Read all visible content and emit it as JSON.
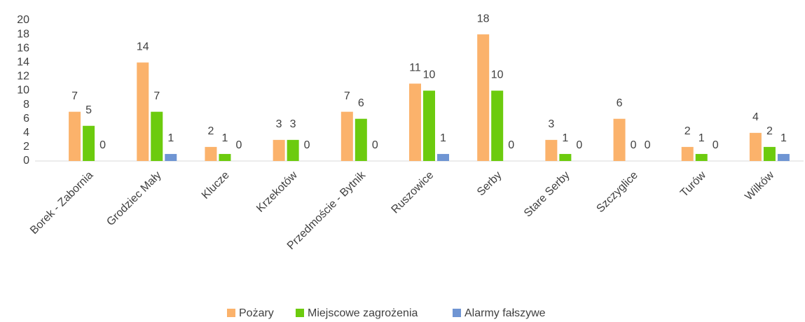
{
  "chart_data": {
    "type": "bar",
    "categories": [
      "Borek - Zabornia",
      "Grodziec Mały",
      "Klucze",
      "Krzekotów",
      "Przedmoście - Bytnik",
      "Ruszowice",
      "Serby",
      "Stare Serby",
      "Szczyglice",
      "Turów",
      "Wilków"
    ],
    "series": [
      {
        "name": "Pożary",
        "color": "#fbb26b",
        "values": [
          7,
          14,
          2,
          3,
          7,
          11,
          18,
          3,
          6,
          2,
          4
        ]
      },
      {
        "name": "Miejscowe zagrożenia",
        "color": "#6ccb0e",
        "values": [
          5,
          7,
          1,
          3,
          6,
          10,
          10,
          1,
          0,
          1,
          2
        ]
      },
      {
        "name": "Alarmy fałszywe",
        "color": "#6f95d3",
        "values": [
          0,
          1,
          0,
          0,
          0,
          1,
          0,
          0,
          0,
          0,
          1
        ]
      }
    ],
    "ylim": [
      0,
      20
    ],
    "yticks": [
      0,
      2,
      4,
      6,
      8,
      10,
      12,
      14,
      16,
      18,
      20
    ],
    "grid": false,
    "legend": "bottom"
  }
}
